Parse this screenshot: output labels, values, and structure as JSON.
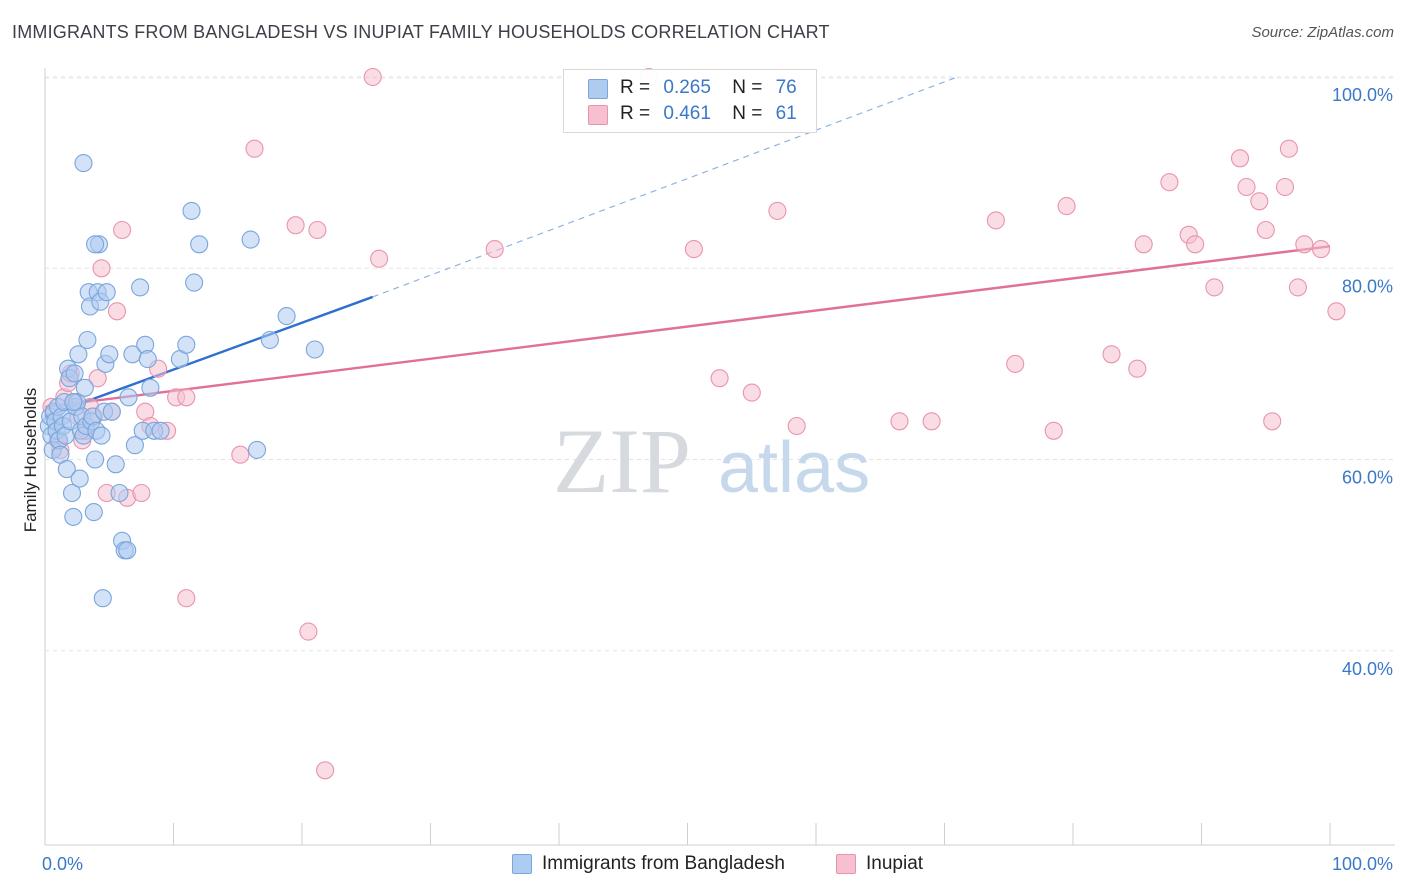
{
  "title": "IMMIGRANTS FROM BANGLADESH VS INUPIAT FAMILY HOUSEHOLDS CORRELATION CHART",
  "source": "Source: ZipAtlas.com",
  "watermark": {
    "zip": "ZIP",
    "atlas": "atlas"
  },
  "legend": {
    "r_label": "R =",
    "n_label": "N =",
    "items": [
      {
        "r": "0.265",
        "n": "76"
      },
      {
        "r": "0.461",
        "n": "61"
      }
    ]
  },
  "colors": {
    "blue_fill": "#aecbf0",
    "blue_stroke": "#7aa6dc",
    "blue_line": "#2f6fcf",
    "pink_fill": "#f6c0d0",
    "pink_stroke": "#e994ad",
    "pink_line": "#e0709a",
    "tick_text": "#3a78c9",
    "grid": "#e3e3e3"
  },
  "chart_data": {
    "type": "scatter",
    "title": "IMMIGRANTS FROM BANGLADESH VS INUPIAT FAMILY HOUSEHOLDS CORRELATION CHART",
    "xlabel": "",
    "ylabel": "Family Households",
    "xlim": [
      0,
      100
    ],
    "ylim": [
      20,
      104
    ],
    "x_tick_labels": [
      "0.0%",
      "100.0%"
    ],
    "y_ticks": [
      40,
      60,
      80,
      100
    ],
    "y_tick_labels": [
      "40.0%",
      "60.0%",
      "80.0%",
      "100.0%"
    ],
    "grid": true,
    "legend_position": "top-center",
    "series": [
      {
        "name": "Immigrants from Bangladesh",
        "r": 0.265,
        "n": 76,
        "trend": {
          "x0": 0,
          "y0": 64.5,
          "x1": 25.5,
          "y1": 77.0,
          "dash_to_x": 71,
          "dash_to_y": 100
        },
        "points": [
          [
            0.3,
            63.5
          ],
          [
            0.4,
            64.5
          ],
          [
            0.5,
            62.5
          ],
          [
            0.6,
            61.0
          ],
          [
            0.7,
            65.0
          ],
          [
            0.8,
            64.0
          ],
          [
            0.9,
            63.0
          ],
          [
            1.0,
            65.5
          ],
          [
            1.1,
            62.0
          ],
          [
            1.2,
            60.5
          ],
          [
            1.3,
            64.5
          ],
          [
            1.4,
            63.5
          ],
          [
            1.5,
            66.0
          ],
          [
            1.6,
            62.5
          ],
          [
            1.7,
            59.0
          ],
          [
            1.8,
            69.5
          ],
          [
            1.9,
            68.5
          ],
          [
            2.0,
            64.0
          ],
          [
            2.1,
            56.5
          ],
          [
            2.2,
            54.0
          ],
          [
            2.3,
            69.0
          ],
          [
            2.4,
            65.5
          ],
          [
            2.5,
            66.0
          ],
          [
            2.6,
            71.0
          ],
          [
            2.7,
            58.0
          ],
          [
            2.8,
            63.0
          ],
          [
            2.9,
            64.5
          ],
          [
            3.0,
            62.5
          ],
          [
            3.1,
            67.5
          ],
          [
            3.2,
            63.5
          ],
          [
            3.3,
            72.5
          ],
          [
            3.4,
            77.5
          ],
          [
            3.5,
            76.0
          ],
          [
            3.6,
            64.0
          ],
          [
            3.7,
            64.5
          ],
          [
            3.8,
            54.5
          ],
          [
            3.9,
            60.0
          ],
          [
            4.0,
            63.0
          ],
          [
            4.1,
            77.5
          ],
          [
            4.2,
            82.5
          ],
          [
            4.3,
            76.5
          ],
          [
            4.4,
            62.5
          ],
          [
            4.5,
            45.5
          ],
          [
            4.6,
            65.0
          ],
          [
            4.7,
            70.0
          ],
          [
            4.8,
            77.5
          ],
          [
            5.0,
            71.0
          ],
          [
            5.2,
            65.0
          ],
          [
            5.5,
            59.5
          ],
          [
            5.8,
            56.5
          ],
          [
            6.0,
            51.5
          ],
          [
            6.2,
            50.5
          ],
          [
            6.5,
            66.5
          ],
          [
            6.8,
            71.0
          ],
          [
            7.0,
            61.5
          ],
          [
            7.4,
            78.0
          ],
          [
            7.6,
            63.0
          ],
          [
            7.8,
            72.0
          ],
          [
            8.0,
            70.5
          ],
          [
            8.2,
            67.5
          ],
          [
            8.5,
            63.0
          ],
          [
            10.5,
            70.5
          ],
          [
            11.0,
            72.0
          ],
          [
            12.0,
            82.5
          ],
          [
            11.4,
            86.0
          ],
          [
            11.6,
            78.5
          ],
          [
            3.0,
            91.0
          ],
          [
            16.0,
            83.0
          ],
          [
            16.5,
            61.0
          ],
          [
            17.5,
            72.5
          ],
          [
            18.8,
            75.0
          ],
          [
            21.0,
            71.5
          ],
          [
            3.9,
            82.5
          ],
          [
            6.4,
            50.5
          ],
          [
            2.2,
            66.0
          ],
          [
            9.0,
            63.0
          ]
        ]
      },
      {
        "name": "Inupiat",
        "r": 0.461,
        "n": 61,
        "trend": {
          "x0": 0,
          "y0": 65.5,
          "x1": 100,
          "y1": 82.3
        },
        "points": [
          [
            0.5,
            65.5
          ],
          [
            0.8,
            64.0
          ],
          [
            1.0,
            62.0
          ],
          [
            1.2,
            61.0
          ],
          [
            1.5,
            66.5
          ],
          [
            1.8,
            68.0
          ],
          [
            2.0,
            69.0
          ],
          [
            2.3,
            66.0
          ],
          [
            2.6,
            64.5
          ],
          [
            2.9,
            62.0
          ],
          [
            3.2,
            63.0
          ],
          [
            3.5,
            65.5
          ],
          [
            3.8,
            64.5
          ],
          [
            4.1,
            68.5
          ],
          [
            4.4,
            80.0
          ],
          [
            4.8,
            56.5
          ],
          [
            5.2,
            65.0
          ],
          [
            5.6,
            75.5
          ],
          [
            6.0,
            84.0
          ],
          [
            6.4,
            56.0
          ],
          [
            7.5,
            56.5
          ],
          [
            7.8,
            65.0
          ],
          [
            8.2,
            63.5
          ],
          [
            8.8,
            69.5
          ],
          [
            9.5,
            63.0
          ],
          [
            10.2,
            66.5
          ],
          [
            11.0,
            66.5
          ],
          [
            11.0,
            45.5
          ],
          [
            15.2,
            60.5
          ],
          [
            16.3,
            92.5
          ],
          [
            19.5,
            84.5
          ],
          [
            20.5,
            42.0
          ],
          [
            21.2,
            84.0
          ],
          [
            21.8,
            27.5
          ],
          [
            25.5,
            100.0
          ],
          [
            26.0,
            81.0
          ],
          [
            35.0,
            82.0
          ],
          [
            47.0,
            100.0
          ],
          [
            50.5,
            82.0
          ],
          [
            52.5,
            68.5
          ],
          [
            55.0,
            67.0
          ],
          [
            57.0,
            86.0
          ],
          [
            58.5,
            63.5
          ],
          [
            66.5,
            64.0
          ],
          [
            69.0,
            64.0
          ],
          [
            74.0,
            85.0
          ],
          [
            75.5,
            70.0
          ],
          [
            78.5,
            63.0
          ],
          [
            79.5,
            86.5
          ],
          [
            83.0,
            71.0
          ],
          [
            85.0,
            69.5
          ],
          [
            85.5,
            82.5
          ],
          [
            87.5,
            89.0
          ],
          [
            89.0,
            83.5
          ],
          [
            89.5,
            82.5
          ],
          [
            91.0,
            78.0
          ],
          [
            93.0,
            91.5
          ],
          [
            93.5,
            88.5
          ],
          [
            94.5,
            87.0
          ],
          [
            95.0,
            84.0
          ],
          [
            95.5,
            64.0
          ]
        ]
      }
    ],
    "extra_pink_points": [
      [
        96.8,
        92.5
      ],
      [
        96.5,
        88.5
      ],
      [
        97.5,
        78.0
      ],
      [
        98.0,
        82.5
      ],
      [
        99.3,
        82.0
      ],
      [
        100.5,
        75.5
      ]
    ]
  },
  "bottom_legend": [
    {
      "label": "Immigrants from Bangladesh"
    },
    {
      "label": "Inupiat"
    }
  ]
}
